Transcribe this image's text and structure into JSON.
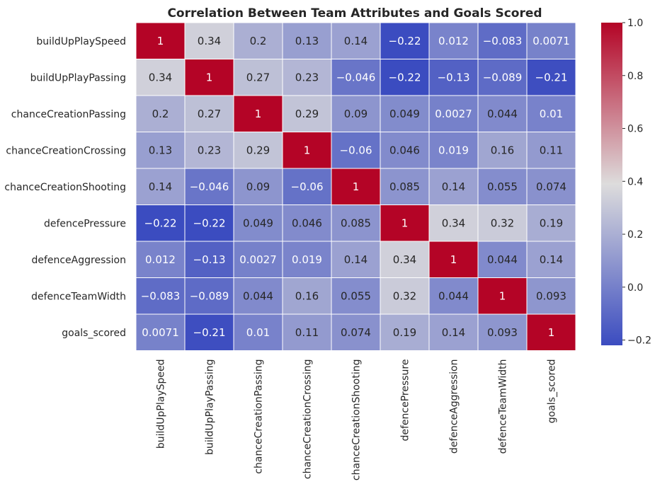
{
  "chart_data": {
    "type": "heatmap",
    "title": "Correlation Between Team Attributes and Goals Scored",
    "xlabel": "",
    "ylabel": "",
    "colormap": "coolwarm",
    "color_low": "#3b4cc0",
    "color_mid": "#dddcdc",
    "color_high": "#b40426",
    "vmin": -0.22,
    "vmax": 1.0,
    "annot_text_dark": "#262626",
    "annot_text_light": "#ffffff",
    "row_labels": [
      "buildUpPlaySpeed",
      "buildUpPlayPassing",
      "chanceCreationPassing",
      "chanceCreationCrossing",
      "chanceCreationShooting",
      "defencePressure",
      "defenceAggression",
      "defenceTeamWidth",
      "goals_scored"
    ],
    "col_labels": [
      "buildUpPlaySpeed",
      "buildUpPlayPassing",
      "chanceCreationPassing",
      "chanceCreationCrossing",
      "chanceCreationShooting",
      "defencePressure",
      "defenceAggression",
      "defenceTeamWidth",
      "goals_scored"
    ],
    "values": [
      [
        1,
        0.34,
        0.2,
        0.13,
        0.14,
        -0.22,
        0.012,
        -0.083,
        0.0071
      ],
      [
        0.34,
        1,
        0.27,
        0.23,
        -0.046,
        -0.22,
        -0.13,
        -0.089,
        -0.21
      ],
      [
        0.2,
        0.27,
        1,
        0.29,
        0.09,
        0.049,
        0.0027,
        0.044,
        0.01
      ],
      [
        0.13,
        0.23,
        0.29,
        1,
        -0.06,
        0.046,
        0.019,
        0.16,
        0.11
      ],
      [
        0.14,
        -0.046,
        0.09,
        -0.06,
        1,
        0.085,
        0.14,
        0.055,
        0.074
      ],
      [
        -0.22,
        -0.22,
        0.049,
        0.046,
        0.085,
        1,
        0.34,
        0.32,
        0.19
      ],
      [
        0.012,
        -0.13,
        0.0027,
        0.019,
        0.14,
        0.34,
        1,
        0.044,
        0.14
      ],
      [
        -0.083,
        -0.089,
        0.044,
        0.16,
        0.055,
        0.32,
        0.044,
        1,
        0.093
      ],
      [
        0.0071,
        -0.21,
        0.01,
        0.11,
        0.074,
        0.19,
        0.14,
        0.093,
        1
      ]
    ],
    "colorbar_ticks": [
      1.0,
      0.8,
      0.6,
      0.4,
      0.2,
      0.0,
      -0.2
    ],
    "colorbar_tick_labels": [
      "1.0",
      "0.8",
      "0.6",
      "0.4",
      "0.2",
      "0.0",
      "−0.2"
    ]
  }
}
